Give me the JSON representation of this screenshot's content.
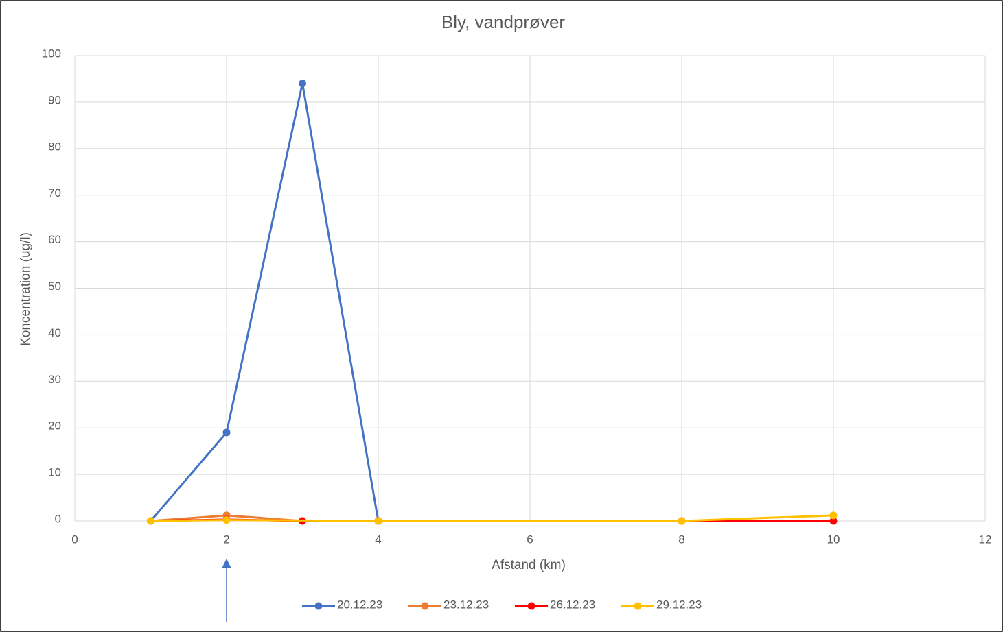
{
  "chart_data": {
    "type": "line",
    "title": "Bly, vandprøver",
    "xlabel": "Afstand (km)",
    "ylabel": "Koncentration (ug/l)",
    "xlim": [
      0,
      12
    ],
    "xticks": [
      0,
      2,
      4,
      6,
      8,
      10,
      12
    ],
    "ylim": [
      0,
      100
    ],
    "yticks": [
      0,
      10,
      20,
      30,
      40,
      50,
      60,
      70,
      80,
      90,
      100
    ],
    "grid": true,
    "legend": "bottom",
    "series": [
      {
        "name": "20.12.23",
        "color": "#4472c4",
        "x": [
          1,
          2,
          3,
          4
        ],
        "values": [
          0,
          19,
          94,
          0
        ]
      },
      {
        "name": "23.12.23",
        "color": "#ed7d31",
        "x": [
          1,
          2,
          3,
          4
        ],
        "values": [
          0,
          1.2,
          0,
          0
        ]
      },
      {
        "name": "26.12.23",
        "color": "#ff0000",
        "x": [
          1,
          2,
          3,
          4,
          8,
          10
        ],
        "values": [
          0,
          0.3,
          0,
          0,
          0,
          0
        ]
      },
      {
        "name": "29.12.23",
        "color": "#ffc000",
        "x": [
          1,
          2,
          4,
          8,
          10
        ],
        "values": [
          0,
          0.2,
          0,
          0,
          1.2
        ]
      }
    ]
  }
}
